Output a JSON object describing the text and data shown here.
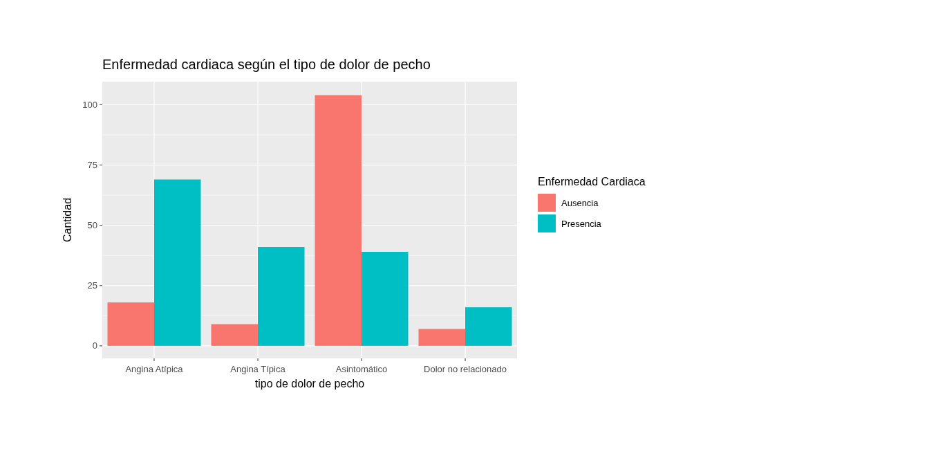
{
  "chart_data": {
    "type": "bar",
    "title": "Enfermedad cardiaca según el tipo de dolor de pecho",
    "xlabel": "tipo de dolor de pecho",
    "ylabel": "Cantidad",
    "legend_title": "Enfermedad Cardiaca",
    "categories": [
      "Angina Atípica",
      "Angina Típica",
      "Asintomático",
      "Dolor no relacionado"
    ],
    "series": [
      {
        "name": "Ausencia",
        "color": "#f8766d",
        "values": [
          18,
          9,
          104,
          7
        ]
      },
      {
        "name": "Presencia",
        "color": "#00bfc4",
        "values": [
          69,
          41,
          39,
          16
        ]
      }
    ],
    "ylim": [
      -5.2,
      109.6
    ],
    "yticks": [
      0,
      25,
      50,
      75,
      100
    ],
    "grid": true,
    "legend": "right"
  }
}
